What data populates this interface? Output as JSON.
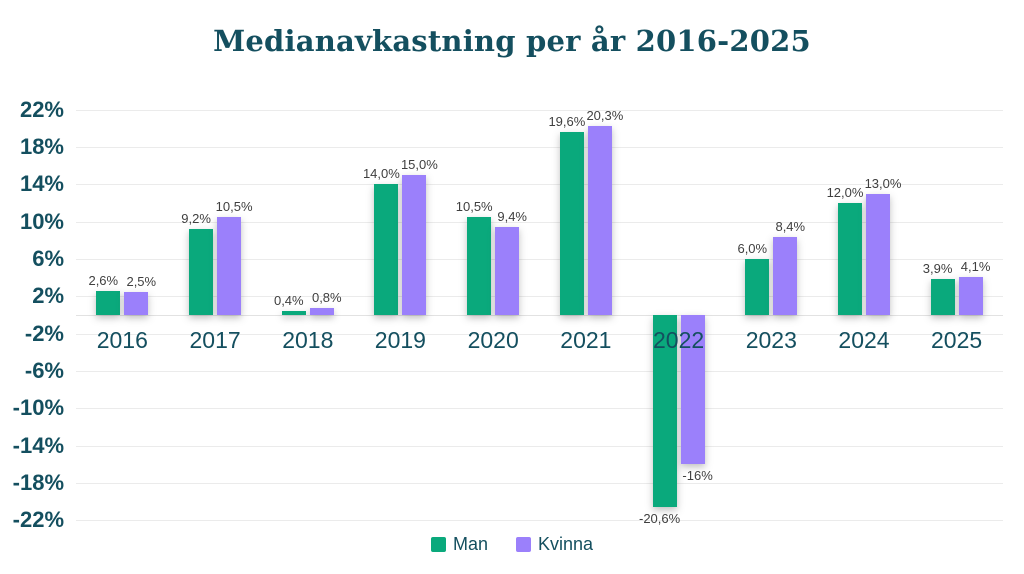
{
  "chart_data": {
    "type": "bar",
    "title": "Medianavkastning per år 2016-2025",
    "categories": [
      "2016",
      "2017",
      "2018",
      "2019",
      "2020",
      "2021",
      "2022",
      "2023",
      "2024",
      "2025"
    ],
    "series": [
      {
        "name": "Man",
        "color": "#0aa97c",
        "values": [
          2.6,
          9.2,
          0.4,
          14.0,
          10.5,
          19.6,
          -20.6,
          6.0,
          12.0,
          3.9
        ],
        "labels": [
          "2,6%",
          "9,2%",
          "0,4%",
          "14,0%",
          "10,5%",
          "19,6%",
          "-20,6%",
          "6,0%",
          "12,0%",
          "3,9%"
        ]
      },
      {
        "name": "Kvinna",
        "color": "#9b80fb",
        "values": [
          2.5,
          10.5,
          0.8,
          15.0,
          9.4,
          20.3,
          -16.0,
          8.4,
          13.0,
          4.1
        ],
        "labels": [
          "2,5%",
          "10,5%",
          "0,8%",
          "15,0%",
          "9,4%",
          "20,3%",
          "-16%",
          "8,4%",
          "13,0%",
          "4,1%"
        ]
      }
    ],
    "y_ticks": [
      22,
      18,
      14,
      10,
      6,
      2,
      -2,
      -6,
      -10,
      -14,
      -18,
      -22
    ],
    "y_tick_labels": [
      "22%",
      "18%",
      "14%",
      "10%",
      "6%",
      "2%",
      "-2%",
      "-6%",
      "-10%",
      "-14%",
      "-18%",
      "-22%"
    ],
    "ylim": [
      -24,
      24
    ],
    "xlabel": "",
    "ylabel": "",
    "grid": true,
    "legend_position": "bottom",
    "colors": {
      "title": "#144f5f",
      "axis_text": "#144f5f",
      "value_label": "#3f3f3f",
      "gridline": "#ebebeb",
      "zero_line": "#e2e2e2"
    }
  }
}
